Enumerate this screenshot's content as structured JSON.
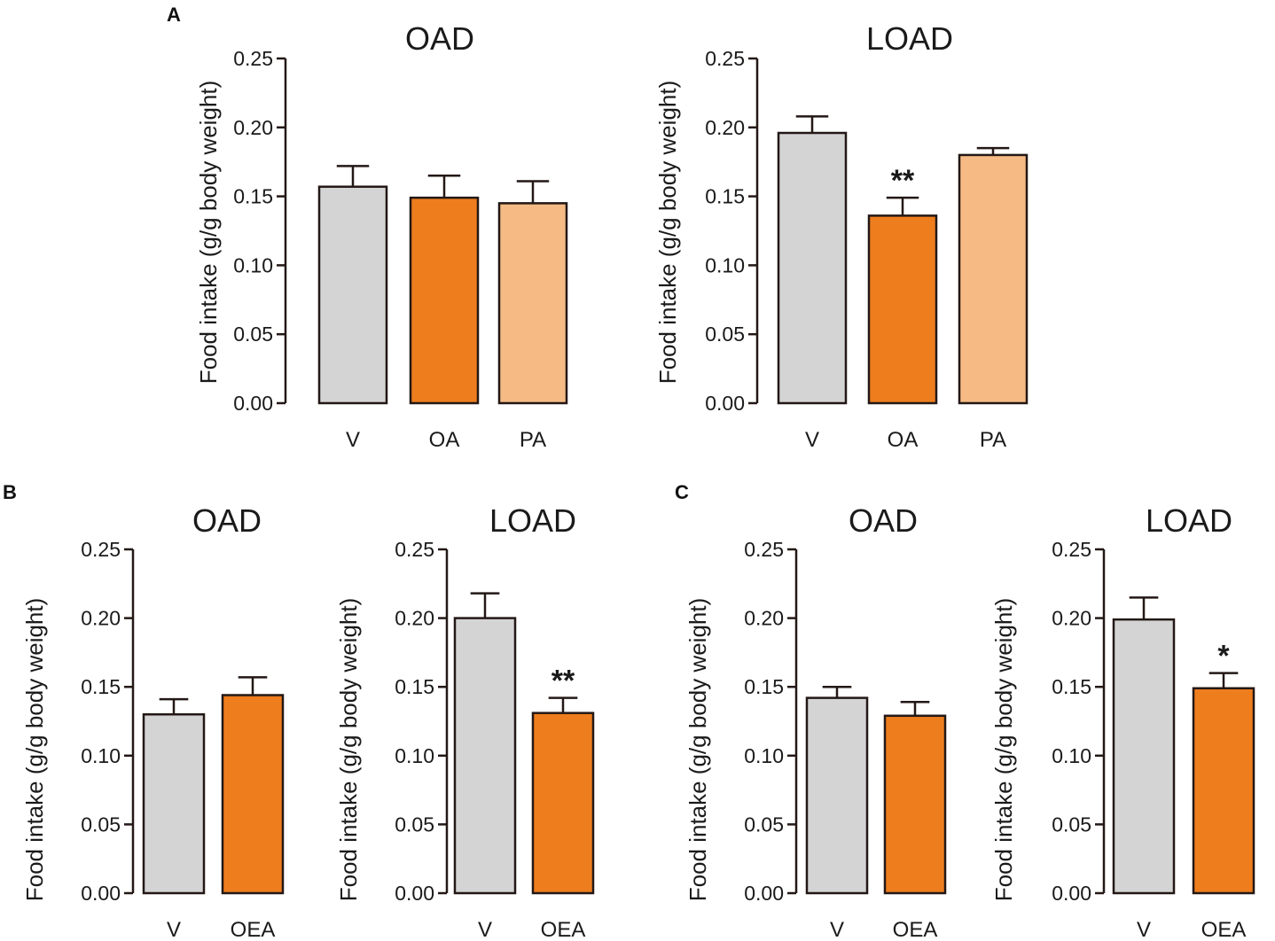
{
  "panels": [
    {
      "id": "A",
      "label": "A"
    },
    {
      "id": "B",
      "label": "B"
    },
    {
      "id": "C",
      "label": "C"
    }
  ],
  "colors": {
    "vehicle": "#d4d4d4",
    "oa": "#ee7d1e",
    "pa": "#f6bb84",
    "oea": "#ee7d1e",
    "axis": "#231815"
  },
  "chart_data": [
    {
      "panel": "A",
      "type": "bar",
      "title": "OAD",
      "ylabel": "Food intake (g/g body weight)",
      "xlabel": "",
      "ylim": [
        0,
        0.25
      ],
      "yticks": [
        "0.00",
        "0.05",
        "0.10",
        "0.15",
        "0.20",
        "0.25"
      ],
      "categories": [
        "V",
        "OA",
        "PA"
      ],
      "values": [
        0.157,
        0.149,
        0.145
      ],
      "errors": [
        0.015,
        0.016,
        0.016
      ],
      "significance": [
        "",
        "",
        ""
      ],
      "bar_colors": [
        "#d4d4d4",
        "#ee7d1e",
        "#f6bb84"
      ]
    },
    {
      "panel": "A",
      "type": "bar",
      "title": "LOAD",
      "ylabel": "Food intake (g/g body weight)",
      "xlabel": "",
      "ylim": [
        0,
        0.25
      ],
      "yticks": [
        "0.00",
        "0.05",
        "0.10",
        "0.15",
        "0.20",
        "0.25"
      ],
      "categories": [
        "V",
        "OA",
        "PA"
      ],
      "values": [
        0.196,
        0.136,
        0.18
      ],
      "errors": [
        0.012,
        0.013,
        0.005
      ],
      "significance": [
        "",
        "**",
        ""
      ],
      "bar_colors": [
        "#d4d4d4",
        "#ee7d1e",
        "#f6bb84"
      ]
    },
    {
      "panel": "B",
      "type": "bar",
      "title": "OAD",
      "ylabel": "Food intake (g/g body weight)",
      "xlabel": "",
      "ylim": [
        0,
        0.25
      ],
      "yticks": [
        "0.00",
        "0.05",
        "0.10",
        "0.15",
        "0.20",
        "0.25"
      ],
      "categories": [
        "V",
        "OEA"
      ],
      "values": [
        0.13,
        0.144
      ],
      "errors": [
        0.011,
        0.013
      ],
      "significance": [
        "",
        ""
      ],
      "bar_colors": [
        "#d4d4d4",
        "#ee7d1e"
      ]
    },
    {
      "panel": "B",
      "type": "bar",
      "title": "LOAD",
      "ylabel": "Food intake (g/g body weight)",
      "xlabel": "",
      "ylim": [
        0,
        0.25
      ],
      "yticks": [
        "0.00",
        "0.05",
        "0.10",
        "0.15",
        "0.20",
        "0.25"
      ],
      "categories": [
        "V",
        "OEA"
      ],
      "values": [
        0.2,
        0.131
      ],
      "errors": [
        0.018,
        0.011
      ],
      "significance": [
        "",
        "**"
      ],
      "bar_colors": [
        "#d4d4d4",
        "#ee7d1e"
      ]
    },
    {
      "panel": "C",
      "type": "bar",
      "title": "OAD",
      "ylabel": "Food intake (g/g body weight)",
      "xlabel": "",
      "ylim": [
        0,
        0.25
      ],
      "yticks": [
        "0.00",
        "0.05",
        "0.10",
        "0.15",
        "0.20",
        "0.25"
      ],
      "categories": [
        "V",
        "OEA"
      ],
      "values": [
        0.142,
        0.129
      ],
      "errors": [
        0.008,
        0.01
      ],
      "significance": [
        "",
        ""
      ],
      "bar_colors": [
        "#d4d4d4",
        "#ee7d1e"
      ]
    },
    {
      "panel": "C",
      "type": "bar",
      "title": "LOAD",
      "ylabel": "Food intake (g/g body weight)",
      "xlabel": "",
      "ylim": [
        0,
        0.25
      ],
      "yticks": [
        "0.00",
        "0.05",
        "0.10",
        "0.15",
        "0.20",
        "0.25"
      ],
      "categories": [
        "V",
        "OEA"
      ],
      "values": [
        0.199,
        0.149
      ],
      "errors": [
        0.016,
        0.011
      ],
      "significance": [
        "",
        "*"
      ],
      "bar_colors": [
        "#d4d4d4",
        "#ee7d1e"
      ]
    }
  ]
}
